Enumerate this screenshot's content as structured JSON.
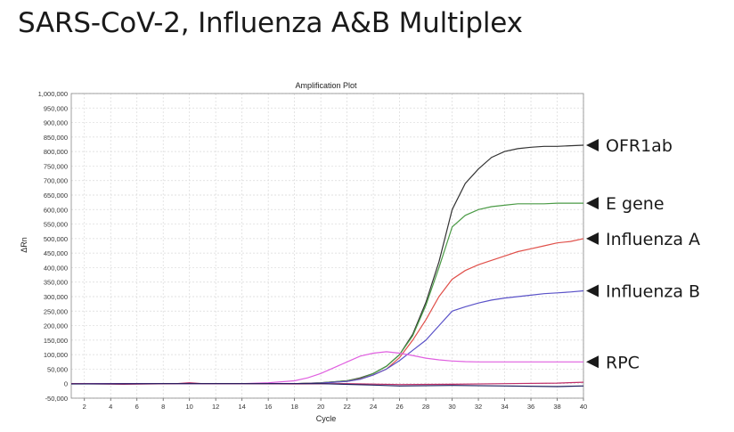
{
  "page": {
    "title": "SARS-CoV-2, Influenza A&B Multiplex"
  },
  "colors": {
    "OFR1ab": "#333333",
    "E gene": "#4a9a45",
    "Influenza A": "#e0504a",
    "Influenza B": "#5a52c8",
    "RPC": "#e060e0",
    "grid": "#d9d9d9",
    "axis": "#555555"
  },
  "chart_data": {
    "type": "line",
    "title": "Amplification Plot",
    "xlabel": "Cycle",
    "ylabel": "ΔRn",
    "xlim": [
      1,
      40
    ],
    "ylim": [
      -50000,
      1000000
    ],
    "x_ticks": [
      "2",
      "4",
      "6",
      "8",
      "10",
      "12",
      "14",
      "16",
      "18",
      "20",
      "22",
      "24",
      "26",
      "28",
      "30",
      "32",
      "34",
      "36",
      "38",
      "40"
    ],
    "y_ticks": [
      "-50,000",
      "0",
      "50,000",
      "100,000",
      "150,000",
      "200,000",
      "250,000",
      "300,000",
      "350,000",
      "400,000",
      "450,000",
      "500,000",
      "550,000",
      "600,000",
      "650,000",
      "700,000",
      "750,000",
      "800,000",
      "850,000",
      "900,000",
      "950,000",
      "1,000,000"
    ],
    "grid": true,
    "series": [
      {
        "name": "OFR1ab",
        "color": "#333333",
        "x": [
          1,
          10,
          14,
          18,
          20,
          22,
          23,
          24,
          25,
          26,
          27,
          28,
          29,
          30,
          31,
          32,
          33,
          34,
          35,
          36,
          37,
          38,
          39,
          40
        ],
        "y": [
          0,
          0,
          0,
          0,
          3000,
          10000,
          20000,
          35000,
          60000,
          100000,
          170000,
          280000,
          420000,
          600000,
          690000,
          740000,
          780000,
          800000,
          810000,
          815000,
          818000,
          818000,
          820000,
          822000
        ]
      },
      {
        "name": "E gene",
        "color": "#4a9a45",
        "x": [
          1,
          10,
          14,
          18,
          20,
          22,
          23,
          24,
          25,
          26,
          27,
          28,
          29,
          30,
          31,
          32,
          33,
          34,
          35,
          36,
          37,
          38,
          39,
          40
        ],
        "y": [
          0,
          0,
          0,
          0,
          3000,
          10000,
          18000,
          35000,
          60000,
          100000,
          165000,
          270000,
          400000,
          540000,
          580000,
          600000,
          610000,
          615000,
          620000,
          620000,
          620000,
          622000,
          622000,
          622000
        ]
      },
      {
        "name": "Influenza A",
        "color": "#e0504a",
        "x": [
          1,
          10,
          14,
          18,
          20,
          22,
          23,
          24,
          25,
          26,
          27,
          28,
          29,
          30,
          31,
          32,
          33,
          34,
          35,
          36,
          37,
          38,
          39,
          40
        ],
        "y": [
          0,
          0,
          0,
          0,
          2000,
          8000,
          16000,
          30000,
          50000,
          90000,
          150000,
          220000,
          300000,
          360000,
          390000,
          410000,
          425000,
          440000,
          455000,
          465000,
          475000,
          485000,
          490000,
          500000
        ]
      },
      {
        "name": "Influenza B",
        "color": "#5a52c8",
        "x": [
          1,
          10,
          14,
          18,
          20,
          22,
          23,
          24,
          25,
          26,
          27,
          28,
          29,
          30,
          31,
          32,
          33,
          34,
          35,
          36,
          37,
          38,
          39,
          40
        ],
        "y": [
          0,
          0,
          0,
          0,
          2000,
          8000,
          15000,
          30000,
          50000,
          80000,
          115000,
          150000,
          200000,
          250000,
          265000,
          278000,
          288000,
          295000,
          300000,
          305000,
          310000,
          313000,
          316000,
          320000
        ]
      },
      {
        "name": "RPC",
        "color": "#e060e0",
        "x": [
          1,
          10,
          14,
          16,
          18,
          19,
          20,
          21,
          22,
          23,
          24,
          25,
          26,
          27,
          28,
          29,
          30,
          31,
          32,
          34,
          36,
          38,
          40
        ],
        "y": [
          0,
          0,
          0,
          3000,
          10000,
          20000,
          35000,
          55000,
          75000,
          95000,
          105000,
          110000,
          105000,
          97000,
          88000,
          82000,
          78000,
          76000,
          75000,
          75000,
          75000,
          75000,
          75000
        ]
      },
      {
        "x": [
          1,
          5,
          9,
          10,
          11,
          14,
          18,
          22,
          26,
          30,
          34,
          38,
          40
        ],
        "y": [
          0,
          -2000,
          0,
          3000,
          0,
          0,
          -1000,
          0,
          -3000,
          -2000,
          0,
          2000,
          5000
        ]
      },
      {
        "x": [
          1,
          8,
          14,
          20,
          24,
          26,
          30,
          34,
          38,
          40
        ],
        "y": [
          -1000,
          0,
          0,
          0,
          -5000,
          -8000,
          -6000,
          -8000,
          -10000,
          -8000
        ]
      }
    ],
    "annotations": [
      "OFR1ab",
      "E gene",
      "Influenza A",
      "Influenza B",
      "RPC"
    ],
    "legend": "right"
  }
}
